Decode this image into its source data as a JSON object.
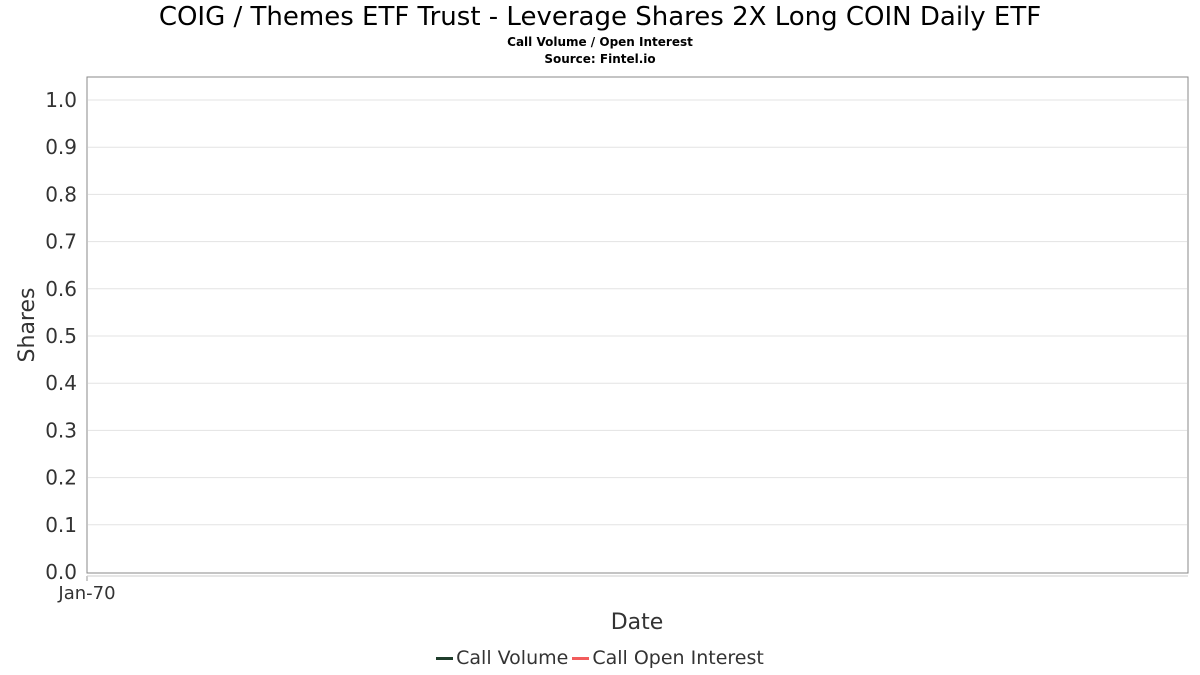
{
  "chart_data": {
    "type": "line",
    "title": "COIG / Themes ETF Trust - Leverage Shares 2X Long COIN Daily ETF",
    "subtitle": "Call Volume / Open Interest",
    "source": "Source: Fintel.io",
    "xlabel": "Date",
    "ylabel": "Shares",
    "x_tick_labels": [
      "Jan-70"
    ],
    "y_ticks": [
      "0.0",
      "0.1",
      "0.2",
      "0.3",
      "0.4",
      "0.5",
      "0.6",
      "0.7",
      "0.8",
      "0.9",
      "1.0"
    ],
    "ylim": [
      0,
      1.05
    ],
    "grid": true,
    "legend_position": "bottom",
    "series": [
      {
        "name": "Call Volume",
        "color": "#1f3d2b",
        "values": []
      },
      {
        "name": "Call Open Interest",
        "color": "#f25c5c",
        "values": []
      }
    ]
  }
}
